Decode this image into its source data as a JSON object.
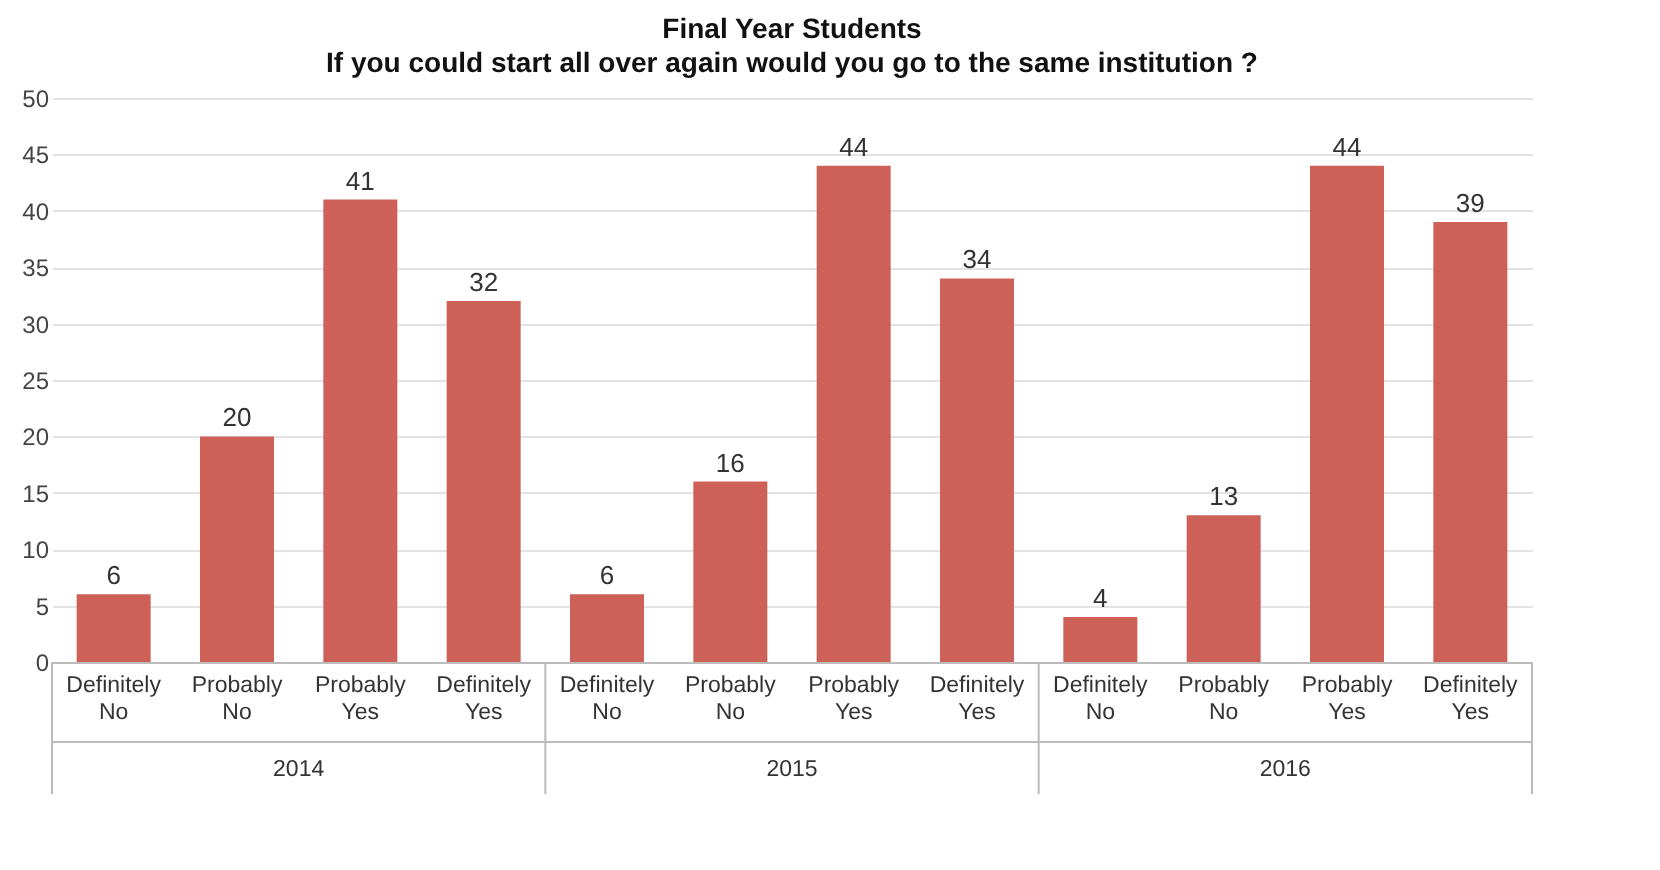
{
  "chart_data": {
    "type": "bar",
    "title": "Final Year Students",
    "subtitle": "If you could start all over again would you go to the same institution ?",
    "categories": [
      "Definitely No",
      "Probably No",
      "Probably Yes",
      "Definitely Yes",
      "Definitely No",
      "Probably No",
      "Probably Yes",
      "Definitely Yes",
      "Definitely No",
      "Probably No",
      "Probably Yes",
      "Definitely Yes"
    ],
    "values": [
      6,
      20,
      41,
      32,
      6,
      16,
      44,
      34,
      4,
      13,
      44,
      39
    ],
    "color": "#cd6157",
    "annotations": [
      "2014",
      "2015",
      "2016"
    ],
    "ylim": [
      0,
      50
    ],
    "yticks": [
      0,
      5,
      10,
      15,
      20,
      25,
      30,
      35,
      40,
      45,
      50
    ],
    "grid": "y",
    "data_labels": true
  }
}
